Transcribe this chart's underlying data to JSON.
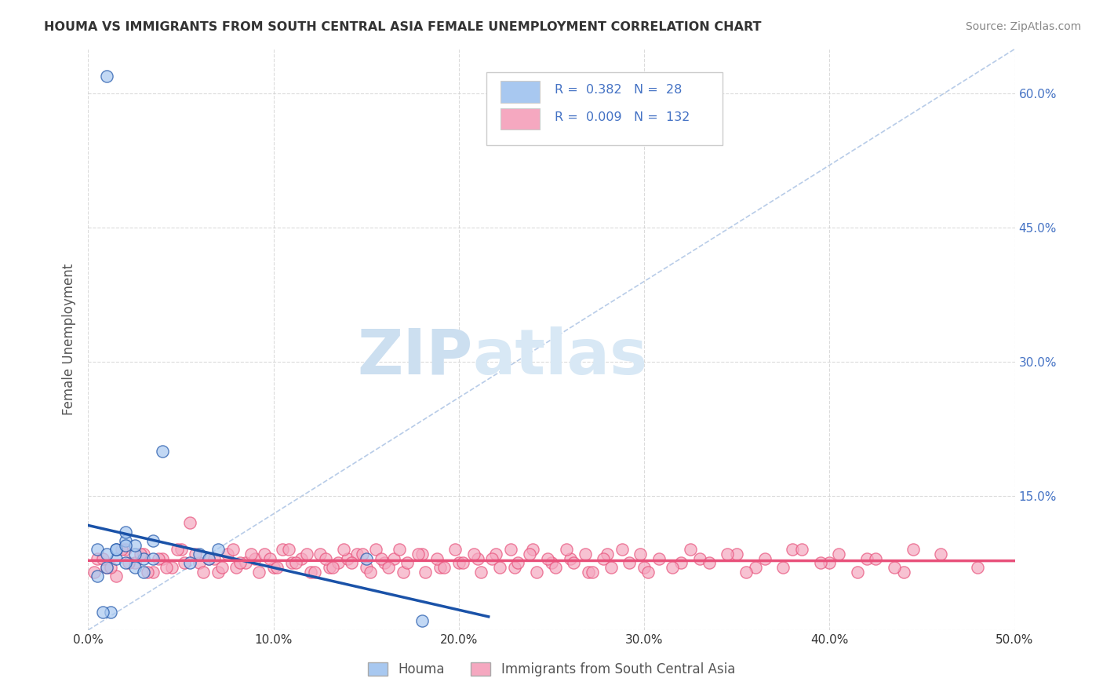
{
  "title": "HOUMA VS IMMIGRANTS FROM SOUTH CENTRAL ASIA FEMALE UNEMPLOYMENT CORRELATION CHART",
  "source": "Source: ZipAtlas.com",
  "ylabel": "Female Unemployment",
  "x_ticks": [
    0.0,
    0.1,
    0.2,
    0.3,
    0.4,
    0.5
  ],
  "x_tick_labels": [
    "0.0%",
    "10.0%",
    "20.0%",
    "30.0%",
    "40.0%",
    "50.0%"
  ],
  "y_ticks": [
    0.0,
    0.15,
    0.3,
    0.45,
    0.6
  ],
  "y_tick_labels_right": [
    "",
    "15.0%",
    "30.0%",
    "45.0%",
    "60.0%"
  ],
  "xlim": [
    0.0,
    0.5
  ],
  "ylim": [
    0.0,
    0.65
  ],
  "houma_R": 0.382,
  "houma_N": 28,
  "immigrants_R": 0.009,
  "immigrants_N": 132,
  "houma_color": "#a8c8f0",
  "houma_line_color": "#1a52a8",
  "immigrants_color": "#f5a8c0",
  "immigrants_line_color": "#e8507a",
  "diagonal_color": "#b8cce8",
  "background_color": "#ffffff",
  "watermark_zip": "ZIP",
  "watermark_atlas": "atlas",
  "watermark_color_zip": "#ccdff0",
  "watermark_color_atlas": "#d8e8f5",
  "legend_label_houma": "Houma",
  "legend_label_immigrants": "Immigrants from South Central Asia",
  "houma_scatter_x": [
    0.01,
    0.02,
    0.015,
    0.025,
    0.005,
    0.03,
    0.02,
    0.01,
    0.035,
    0.015,
    0.025,
    0.005,
    0.02,
    0.03,
    0.01,
    0.04,
    0.015,
    0.025,
    0.06,
    0.07,
    0.055,
    0.065,
    0.02,
    0.012,
    0.008,
    0.18,
    0.15,
    0.035
  ],
  "houma_scatter_y": [
    0.62,
    0.1,
    0.08,
    0.07,
    0.09,
    0.08,
    0.11,
    0.07,
    0.08,
    0.09,
    0.085,
    0.06,
    0.075,
    0.065,
    0.085,
    0.2,
    0.09,
    0.095,
    0.085,
    0.09,
    0.075,
    0.08,
    0.095,
    0.02,
    0.02,
    0.01,
    0.08,
    0.1
  ],
  "immigrants_scatter_x": [
    0.005,
    0.01,
    0.02,
    0.015,
    0.025,
    0.03,
    0.035,
    0.04,
    0.045,
    0.05,
    0.055,
    0.06,
    0.065,
    0.07,
    0.075,
    0.08,
    0.085,
    0.09,
    0.095,
    0.1,
    0.105,
    0.11,
    0.115,
    0.12,
    0.125,
    0.13,
    0.135,
    0.14,
    0.145,
    0.15,
    0.155,
    0.16,
    0.165,
    0.17,
    0.18,
    0.19,
    0.2,
    0.21,
    0.22,
    0.23,
    0.24,
    0.25,
    0.26,
    0.27,
    0.28,
    0.3,
    0.32,
    0.33,
    0.35,
    0.36,
    0.38,
    0.4,
    0.42,
    0.44,
    0.46,
    0.48,
    0.003,
    0.008,
    0.012,
    0.018,
    0.022,
    0.028,
    0.032,
    0.038,
    0.042,
    0.048,
    0.052,
    0.058,
    0.062,
    0.068,
    0.072,
    0.078,
    0.082,
    0.088,
    0.092,
    0.098,
    0.102,
    0.108,
    0.112,
    0.118,
    0.122,
    0.128,
    0.132,
    0.138,
    0.142,
    0.148,
    0.152,
    0.158,
    0.162,
    0.168,
    0.172,
    0.178,
    0.182,
    0.188,
    0.192,
    0.198,
    0.202,
    0.208,
    0.212,
    0.218,
    0.222,
    0.228,
    0.232,
    0.238,
    0.242,
    0.248,
    0.252,
    0.258,
    0.262,
    0.268,
    0.272,
    0.278,
    0.282,
    0.288,
    0.292,
    0.298,
    0.302,
    0.308,
    0.315,
    0.325,
    0.335,
    0.345,
    0.355,
    0.365,
    0.375,
    0.385,
    0.395,
    0.405,
    0.415,
    0.425,
    0.435,
    0.445
  ],
  "immigrants_scatter_y": [
    0.08,
    0.07,
    0.09,
    0.06,
    0.075,
    0.085,
    0.065,
    0.08,
    0.07,
    0.09,
    0.12,
    0.075,
    0.08,
    0.065,
    0.085,
    0.07,
    0.075,
    0.08,
    0.085,
    0.07,
    0.09,
    0.075,
    0.08,
    0.065,
    0.085,
    0.07,
    0.075,
    0.08,
    0.085,
    0.07,
    0.09,
    0.075,
    0.08,
    0.065,
    0.085,
    0.07,
    0.075,
    0.08,
    0.085,
    0.07,
    0.09,
    0.075,
    0.08,
    0.065,
    0.085,
    0.07,
    0.075,
    0.08,
    0.085,
    0.07,
    0.09,
    0.075,
    0.08,
    0.065,
    0.085,
    0.07,
    0.065,
    0.08,
    0.07,
    0.09,
    0.075,
    0.085,
    0.065,
    0.08,
    0.07,
    0.09,
    0.075,
    0.085,
    0.065,
    0.08,
    0.07,
    0.09,
    0.075,
    0.085,
    0.065,
    0.08,
    0.07,
    0.09,
    0.075,
    0.085,
    0.065,
    0.08,
    0.07,
    0.09,
    0.075,
    0.085,
    0.065,
    0.08,
    0.07,
    0.09,
    0.075,
    0.085,
    0.065,
    0.08,
    0.07,
    0.09,
    0.075,
    0.085,
    0.065,
    0.08,
    0.07,
    0.09,
    0.075,
    0.085,
    0.065,
    0.08,
    0.07,
    0.09,
    0.075,
    0.085,
    0.065,
    0.08,
    0.07,
    0.09,
    0.075,
    0.085,
    0.065,
    0.08,
    0.07,
    0.09,
    0.075,
    0.085,
    0.065,
    0.08,
    0.07,
    0.09,
    0.075,
    0.085,
    0.065,
    0.08,
    0.07,
    0.09
  ]
}
